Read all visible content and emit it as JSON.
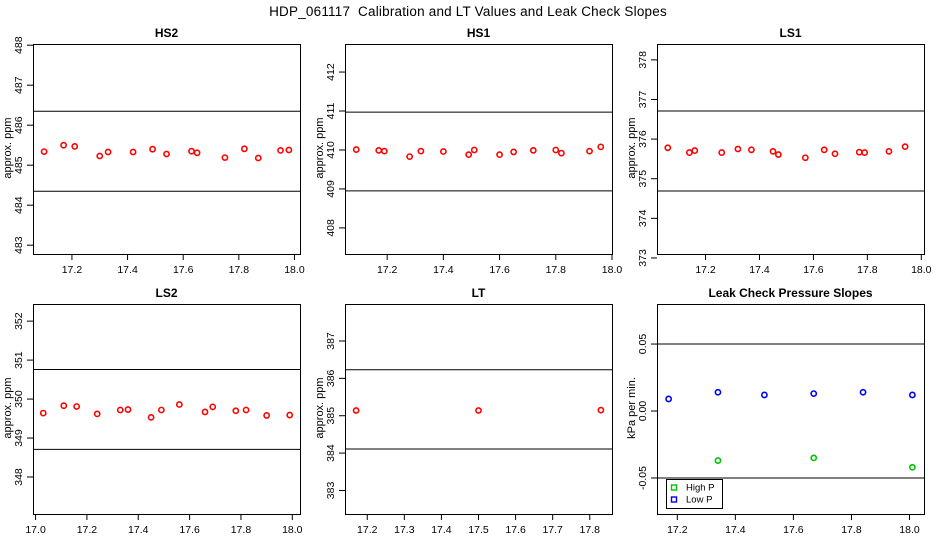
{
  "page_title": "HDP_061117  Calibration and LT Values and Leak Check Slopes",
  "colors": {
    "calibration_red": "#ff0000",
    "high_p_green": "#00c400",
    "low_p_blue": "#0000ff",
    "axis_black": "#000000",
    "background": "#ffffff"
  },
  "chart_data": [
    {
      "id": "hs2",
      "type": "scatter",
      "title": "HS2",
      "ylabel": "approx. ppm",
      "xlim": [
        17.06,
        18.02
      ],
      "ylim": [
        482.78,
        488.03
      ],
      "xticks": [
        17.2,
        17.4,
        17.6,
        17.8,
        18.0
      ],
      "xtick_labels": [
        "17.2",
        "17.4",
        "17.6",
        "17.8",
        "18.0"
      ],
      "yticks": [
        483,
        484,
        485,
        486,
        487,
        488
      ],
      "ytick_labels": [
        "483",
        "484",
        "485",
        "486",
        "487",
        "488"
      ],
      "hlines": [
        486.35,
        484.35
      ],
      "series": [
        {
          "name": "HS2 calibration",
          "color": "#ff0000",
          "marker": "open-circle",
          "x": [
            17.1,
            17.17,
            17.21,
            17.3,
            17.33,
            17.42,
            17.49,
            17.54,
            17.63,
            17.65,
            17.75,
            17.82,
            17.87,
            17.95,
            17.98
          ],
          "y": [
            485.34,
            485.5,
            485.47,
            485.23,
            485.33,
            485.33,
            485.4,
            485.28,
            485.35,
            485.31,
            485.19,
            485.41,
            485.18,
            485.37,
            485.38
          ]
        }
      ]
    },
    {
      "id": "hs1",
      "type": "scatter",
      "title": "HS1",
      "ylabel": "approx. ppm",
      "xlim": [
        17.05,
        18.0
      ],
      "ylim": [
        407.33,
        412.72
      ],
      "xticks": [
        17.2,
        17.4,
        17.6,
        17.8,
        18.0
      ],
      "xtick_labels": [
        "17.2",
        "17.4",
        "17.6",
        "17.8",
        "18.0"
      ],
      "yticks": [
        408,
        409,
        410,
        411,
        412
      ],
      "ytick_labels": [
        "408",
        "409",
        "410",
        "411",
        "412"
      ],
      "hlines": [
        410.97,
        408.95
      ],
      "series": [
        {
          "name": "HS1 calibration",
          "color": "#ff0000",
          "marker": "open-circle",
          "x": [
            17.09,
            17.17,
            17.19,
            17.28,
            17.32,
            17.4,
            17.49,
            17.51,
            17.6,
            17.65,
            17.72,
            17.8,
            17.82,
            17.92,
            17.96
          ],
          "y": [
            410.01,
            409.99,
            409.97,
            409.83,
            409.97,
            409.96,
            409.88,
            410.0,
            409.88,
            409.95,
            409.99,
            410.0,
            409.92,
            409.97,
            410.08
          ]
        }
      ]
    },
    {
      "id": "ls1",
      "type": "scatter",
      "title": "LS1",
      "ylabel": "approx. ppm",
      "xlim": [
        17.02,
        18.01
      ],
      "ylim": [
        373.1,
        378.4
      ],
      "xticks": [
        17.2,
        17.4,
        17.6,
        17.8,
        18.0
      ],
      "xtick_labels": [
        "17.2",
        "17.4",
        "17.6",
        "17.8",
        "18.0"
      ],
      "yticks": [
        373,
        374,
        375,
        376,
        377,
        378
      ],
      "ytick_labels": [
        "373",
        "374",
        "375",
        "376",
        "377",
        "378"
      ],
      "hlines": [
        376.71,
        374.69
      ],
      "series": [
        {
          "name": "LS1 calibration",
          "color": "#ff0000",
          "marker": "open-circle",
          "x": [
            17.06,
            17.14,
            17.16,
            17.26,
            17.32,
            17.37,
            17.45,
            17.47,
            17.57,
            17.64,
            17.68,
            17.77,
            17.79,
            17.88,
            17.94
          ],
          "y": [
            375.78,
            375.66,
            375.71,
            375.66,
            375.75,
            375.73,
            375.69,
            375.61,
            375.53,
            375.73,
            375.63,
            375.67,
            375.66,
            375.69,
            375.81
          ]
        }
      ]
    },
    {
      "id": "ls2",
      "type": "scatter",
      "title": "LS2",
      "ylabel": "approx. ppm",
      "xlim": [
        16.99,
        18.03
      ],
      "ylim": [
        347.05,
        352.44
      ],
      "xticks": [
        17.0,
        17.2,
        17.4,
        17.6,
        17.8,
        18.0
      ],
      "xtick_labels": [
        "17.0",
        "17.2",
        "17.4",
        "17.6",
        "17.8",
        "18.0"
      ],
      "yticks": [
        348,
        349,
        350,
        351,
        352
      ],
      "ytick_labels": [
        "348",
        "349",
        "350",
        "351",
        "352"
      ],
      "hlines": [
        350.76,
        348.71
      ],
      "series": [
        {
          "name": "LS2 calibration",
          "color": "#ff0000",
          "marker": "open-circle",
          "x": [
            17.03,
            17.11,
            17.16,
            17.24,
            17.33,
            17.36,
            17.45,
            17.49,
            17.56,
            17.66,
            17.69,
            17.78,
            17.82,
            17.9,
            17.99
          ],
          "y": [
            349.64,
            349.83,
            349.81,
            349.62,
            349.72,
            349.73,
            349.53,
            349.72,
            349.86,
            349.67,
            349.8,
            349.7,
            349.72,
            349.58,
            349.59
          ]
        }
      ]
    },
    {
      "id": "lt",
      "type": "scatter",
      "title": "LT",
      "ylabel": "approx. ppm",
      "xlim": [
        17.14,
        17.86
      ],
      "ylim": [
        382.37,
        387.99
      ],
      "xticks": [
        17.2,
        17.3,
        17.4,
        17.5,
        17.6,
        17.7,
        17.8
      ],
      "xtick_labels": [
        "17.2",
        "17.3",
        "17.4",
        "17.5",
        "17.6",
        "17.7",
        "17.8"
      ],
      "yticks": [
        383,
        384,
        385,
        386,
        387
      ],
      "ytick_labels": [
        "383",
        "384",
        "385",
        "386",
        "387"
      ],
      "hlines": [
        386.23,
        384.11
      ],
      "series": [
        {
          "name": "LT values",
          "color": "#ff0000",
          "marker": "open-circle",
          "x": [
            17.17,
            17.5,
            17.83
          ],
          "y": [
            385.14,
            385.14,
            385.15
          ]
        }
      ]
    },
    {
      "id": "leak-check",
      "type": "scatter",
      "title": "Leak Check Pressure Slopes",
      "ylabel": "kPa per min.",
      "xlim": [
        17.13,
        18.05
      ],
      "ylim": [
        -0.0769,
        0.0799
      ],
      "xticks": [
        17.2,
        17.4,
        17.6,
        17.8,
        18.0
      ],
      "xtick_labels": [
        "17.2",
        "17.4",
        "17.6",
        "17.8",
        "18.0"
      ],
      "yticks": [
        -0.05,
        0.0,
        0.05
      ],
      "ytick_labels": [
        "-0.05",
        "0.00",
        "0.05"
      ],
      "hlines": [
        0.05,
        -0.05
      ],
      "legend": {
        "position": "bottom-left",
        "items": [
          {
            "label": "High P",
            "color": "#00c400"
          },
          {
            "label": "Low P",
            "color": "#0000ff"
          }
        ]
      },
      "series": [
        {
          "name": "High P",
          "color": "#00c400",
          "marker": "open-circle",
          "x": [
            17.34,
            17.67,
            18.01
          ],
          "y": [
            -0.037,
            -0.035,
            -0.042
          ]
        },
        {
          "name": "Low P",
          "color": "#0000ff",
          "marker": "open-circle",
          "x": [
            17.17,
            17.34,
            17.5,
            17.67,
            17.84,
            18.01
          ],
          "y": [
            0.009,
            0.014,
            0.012,
            0.013,
            0.014,
            0.012
          ]
        }
      ]
    }
  ]
}
